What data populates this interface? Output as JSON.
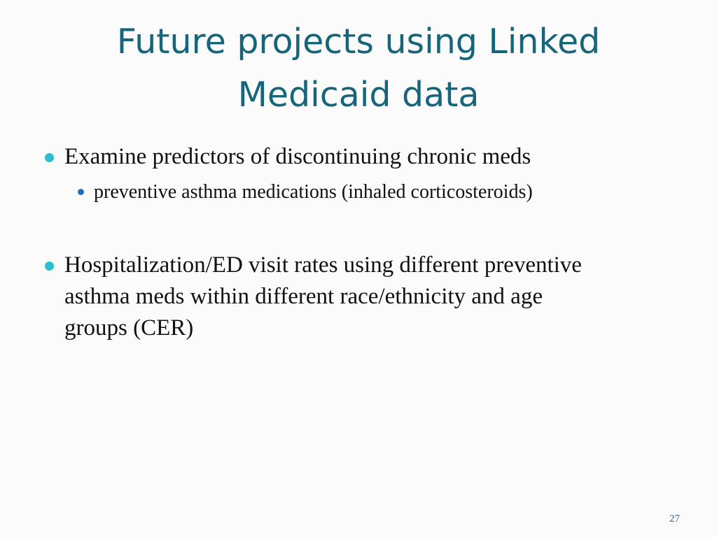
{
  "title": "Future projects using Linked Medicaid data",
  "bullets": [
    {
      "text": "Examine predictors of discontinuing chronic meds",
      "sub": [
        "preventive asthma medications (inhaled corticosteroids)"
      ]
    },
    {
      "text": "Hospitalization/ED visit rates using different preventive asthma meds within different race/ethnicity and age groups (CER)"
    }
  ],
  "page_number": "27",
  "colors": {
    "title": "#17657a",
    "bullet": "#2bc0d0",
    "sub_bullet": "#1d6fc0"
  }
}
